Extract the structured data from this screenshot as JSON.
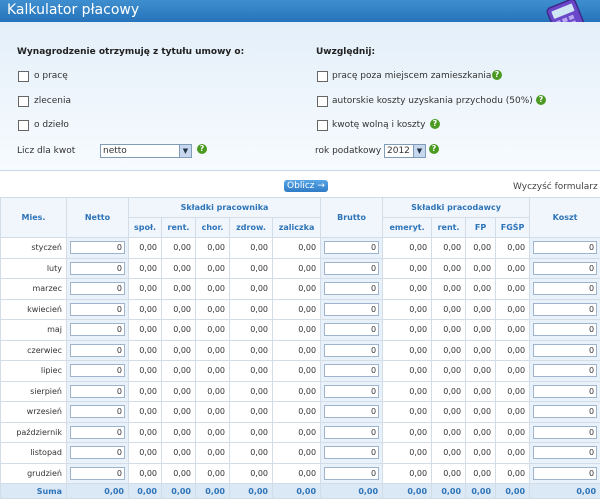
{
  "header": {
    "title": "Kalkulator płacowy",
    "icon": "calculator-icon"
  },
  "left": {
    "title": "Wynagrodzenie otrzymuję z tytułu umowy o:",
    "options": [
      "o pracę",
      "zlecenia",
      "o dzieło"
    ],
    "calc_label": "Licz dla kwot",
    "calc_value": "netto"
  },
  "right": {
    "title": "Uwzględnij:",
    "options": [
      "pracę poza miejscem zamieszkania",
      "autorskie koszty uzyskania przychodu (50%)",
      "kwotę wolną i koszty"
    ],
    "year_label": "rok podatkowy",
    "year_value": "2012"
  },
  "actions": {
    "calc": "Oblicz",
    "calc_arrow": "→",
    "clear": "Wyczyść formularz"
  },
  "table": {
    "headers": {
      "month": "Mies.",
      "net": "Netto",
      "emp": "Składki pracownika",
      "gross": "Brutto",
      "empr": "Składki pracodawcy",
      "cost": "Koszt"
    },
    "sub_emp": [
      "społ.",
      "rent.",
      "chor.",
      "zdrow.",
      "zaliczka"
    ],
    "sub_empr": [
      "emeryt.",
      "rent.",
      "FP",
      "FGŚP"
    ],
    "months": [
      "styczeń",
      "luty",
      "marzec",
      "kwiecień",
      "maj",
      "czerwiec",
      "lipiec",
      "sierpień",
      "wrzesień",
      "październik",
      "listopad",
      "grudzień"
    ],
    "input_value": "0",
    "zero": "0,00",
    "sum_label": "Suma",
    "sum_value": "0,00"
  },
  "colors": {
    "header_blue": "#2673b9",
    "help_green": "#4b9b22",
    "table_head": "#2e74b8"
  }
}
